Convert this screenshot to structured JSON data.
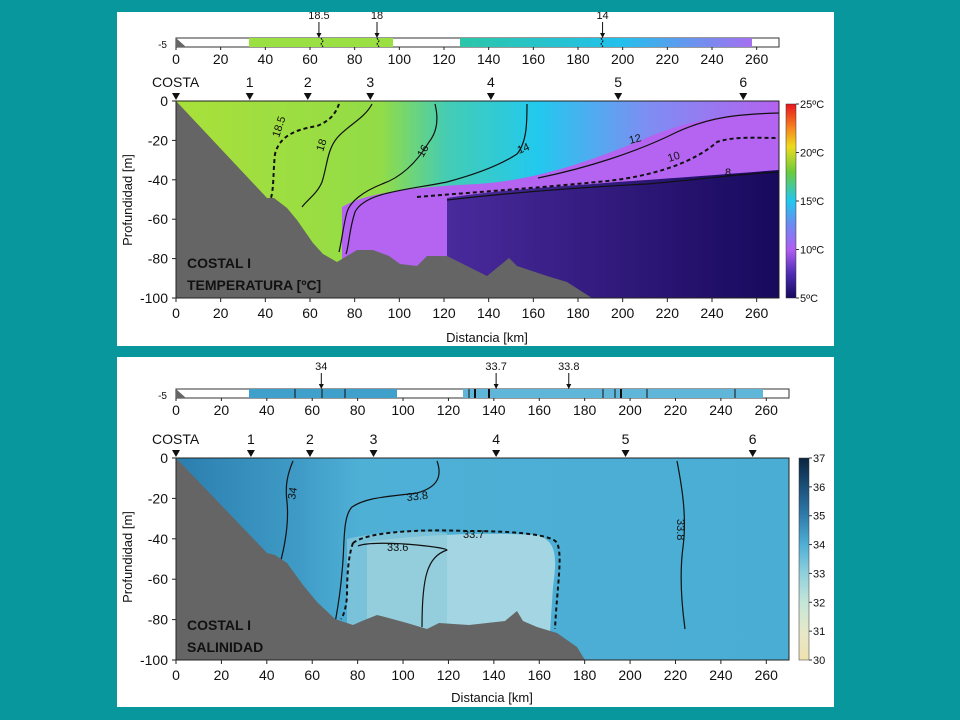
{
  "chart_data": [
    {
      "type": "heatmap",
      "title_lines": [
        "COSTAL I",
        "TEMPERATURA [ºC]"
      ],
      "xlabel": "Distancia [km]",
      "ylabel": "Profundidad [m]",
      "xlim": [
        0,
        270
      ],
      "ylim": [
        -100,
        0
      ],
      "xticks": [
        "0",
        "20",
        "40",
        "60",
        "80",
        "100",
        "120",
        "140",
        "160",
        "180",
        "200",
        "220",
        "240",
        "260"
      ],
      "yticks": [
        "0",
        "-20",
        "-40",
        "-60",
        "-80",
        "-100"
      ],
      "stations": [
        {
          "label": "COSTA",
          "km": 0
        },
        {
          "label": "1",
          "km": 33
        },
        {
          "label": "2",
          "km": 59
        },
        {
          "label": "3",
          "km": 87
        },
        {
          "label": "4",
          "km": 141
        },
        {
          "label": "5",
          "km": 198
        },
        {
          "label": "6",
          "km": 254
        }
      ],
      "surface_strip": {
        "depth_label": "-5",
        "xticks": [
          "0",
          "20",
          "40",
          "60",
          "80",
          "100",
          "120",
          "140",
          "160",
          "180",
          "200",
          "220",
          "240",
          "260"
        ],
        "labels": [
          {
            "text": "18.5",
            "km": 64
          },
          {
            "text": "18",
            "km": 90
          },
          {
            "text": "14",
            "km": 191
          }
        ]
      },
      "contours": [
        {
          "level": "18.5",
          "style": "dashed"
        },
        {
          "level": "18",
          "style": "solid"
        },
        {
          "level": "16",
          "style": "solid"
        },
        {
          "level": "14",
          "style": "solid"
        },
        {
          "level": "12",
          "style": "solid"
        },
        {
          "level": "10",
          "style": "dashed"
        },
        {
          "level": "8",
          "style": "solid"
        }
      ],
      "colorbar": {
        "labels": [
          "25ºC",
          "20ºC",
          "15ºC",
          "10ºC",
          "5ºC"
        ],
        "min": 5,
        "max": 25
      },
      "colors": {
        "warm": "#a7e23a",
        "mid": "#29cdee",
        "purple": "#b060f0",
        "deep": "#1a0a60"
      }
    },
    {
      "type": "heatmap",
      "title_lines": [
        "COSTAL I",
        "SALINIDAD"
      ],
      "xlabel": "Distancia [km]",
      "ylabel": "Profundidad [m]",
      "xlim": [
        0,
        270
      ],
      "ylim": [
        -100,
        0
      ],
      "xticks": [
        "0",
        "20",
        "40",
        "60",
        "80",
        "100",
        "120",
        "140",
        "160",
        "180",
        "200",
        "220",
        "240",
        "260"
      ],
      "yticks": [
        "0",
        "-20",
        "-40",
        "-60",
        "-80",
        "-100"
      ],
      "stations": [
        {
          "label": "COSTA",
          "km": 0
        },
        {
          "label": "1",
          "km": 33
        },
        {
          "label": "2",
          "km": 59
        },
        {
          "label": "3",
          "km": 87
        },
        {
          "label": "4",
          "km": 141
        },
        {
          "label": "5",
          "km": 198
        },
        {
          "label": "6",
          "km": 254
        }
      ],
      "surface_strip": {
        "depth_label": "-5",
        "xticks": [
          "0",
          "20",
          "40",
          "60",
          "80",
          "100",
          "120",
          "140",
          "160",
          "180",
          "200",
          "220",
          "240",
          "260"
        ],
        "labels": [
          {
            "text": "34",
            "km": 64
          },
          {
            "text": "33.7",
            "km": 141
          },
          {
            "text": "33.8",
            "km": 173
          }
        ]
      },
      "contours": [
        {
          "level": "34",
          "style": "solid"
        },
        {
          "level": "33.8",
          "style": "solid"
        },
        {
          "level": "33.7",
          "style": "dashed"
        },
        {
          "level": "33.6",
          "style": "solid"
        }
      ],
      "colorbar": {
        "labels": [
          "37",
          "36",
          "35",
          "34",
          "33",
          "32",
          "31",
          "30"
        ],
        "min": 30,
        "max": 37
      },
      "colors": {
        "coast": "#2f86b3",
        "mid": "#4fb0d6",
        "core": "#a6d8e2",
        "outer": "#4aafd4"
      }
    }
  ]
}
